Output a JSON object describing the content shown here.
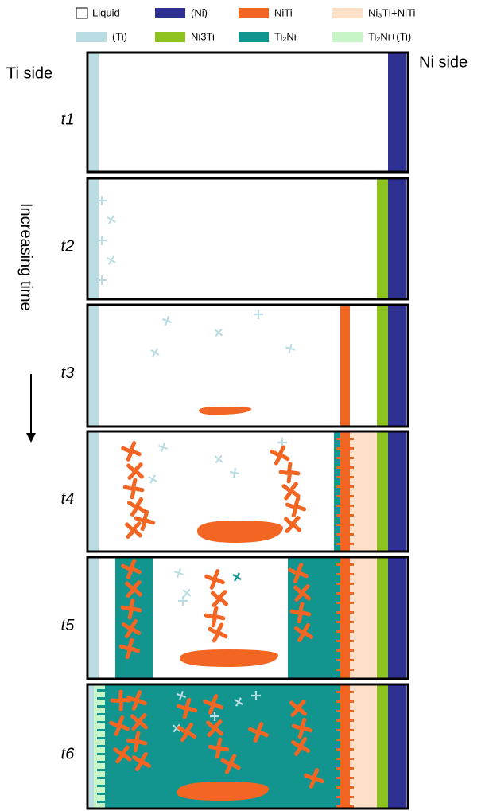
{
  "legend": {
    "items": [
      {
        "label": "Liquid"
      },
      {
        "label": "(Ni)"
      },
      {
        "label": "NiTi"
      },
      {
        "label": "Ni₃TI+NiTi"
      },
      {
        "label": "(Ti)"
      },
      {
        "label": "Ni3Ti"
      },
      {
        "label": "Ti₂Ni"
      },
      {
        "label": "Ti₂Ni+(Ti)"
      }
    ]
  },
  "labels": {
    "ti_side": "Ti side",
    "ni_side": "Ni side",
    "time_axis": "Increasing  time"
  },
  "panels": [
    {
      "label": "t1"
    },
    {
      "label": "t2"
    },
    {
      "label": "t3"
    },
    {
      "label": "t4"
    },
    {
      "label": "t5"
    },
    {
      "label": "t6"
    }
  ]
}
